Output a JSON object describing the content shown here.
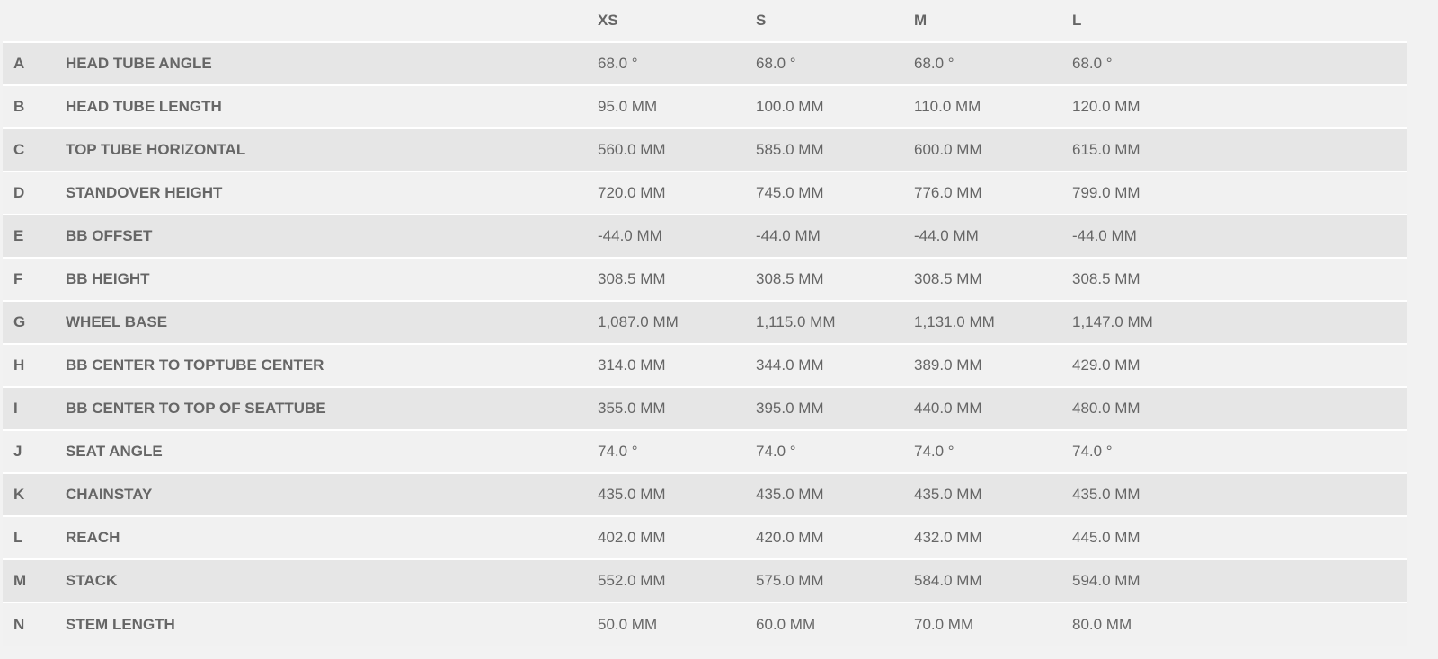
{
  "table": {
    "header": [
      "XS",
      "S",
      "M",
      "L"
    ],
    "rows": [
      [
        "A",
        "HEAD TUBE ANGLE",
        "68.0 °",
        "68.0 °",
        "68.0 °",
        "68.0 °"
      ],
      [
        "B",
        "HEAD TUBE LENGTH",
        "95.0 MM",
        "100.0 MM",
        "110.0 MM",
        "120.0 MM"
      ],
      [
        "C",
        "TOP TUBE HORIZONTAL",
        "560.0 MM",
        "585.0 MM",
        "600.0 MM",
        "615.0 MM"
      ],
      [
        "D",
        "STANDOVER HEIGHT",
        "720.0 MM",
        "745.0 MM",
        "776.0 MM",
        "799.0 MM"
      ],
      [
        "E",
        "BB OFFSET",
        "-44.0 MM",
        "-44.0 MM",
        "-44.0 MM",
        "-44.0 MM"
      ],
      [
        "F",
        "BB HEIGHT",
        "308.5 MM",
        "308.5 MM",
        "308.5 MM",
        "308.5 MM"
      ],
      [
        "G",
        "WHEEL BASE",
        "1,087.0 MM",
        "1,115.0 MM",
        "1,131.0 MM",
        "1,147.0 MM"
      ],
      [
        "H",
        "BB CENTER TO TOPTUBE CENTER",
        "314.0 MM",
        "344.0 MM",
        "389.0 MM",
        "429.0 MM"
      ],
      [
        "I",
        "BB CENTER TO TOP OF SEATTUBE",
        "355.0 MM",
        "395.0 MM",
        "440.0 MM",
        "480.0 MM"
      ],
      [
        "J",
        "SEAT ANGLE",
        "74.0 °",
        "74.0 °",
        "74.0 °",
        "74.0 °"
      ],
      [
        "K",
        "CHAINSTAY",
        "435.0 MM",
        "435.0 MM",
        "435.0 MM",
        "435.0 MM"
      ],
      [
        "L",
        "REACH",
        "402.0 MM",
        "420.0 MM",
        "432.0 MM",
        "445.0 MM"
      ],
      [
        "M",
        "STACK",
        "552.0 MM",
        "575.0 MM",
        "584.0 MM",
        "594.0 MM"
      ],
      [
        "N",
        "STEM LENGTH",
        "50.0 MM",
        "60.0 MM",
        "70.0 MM",
        "80.0 MM"
      ]
    ]
  }
}
